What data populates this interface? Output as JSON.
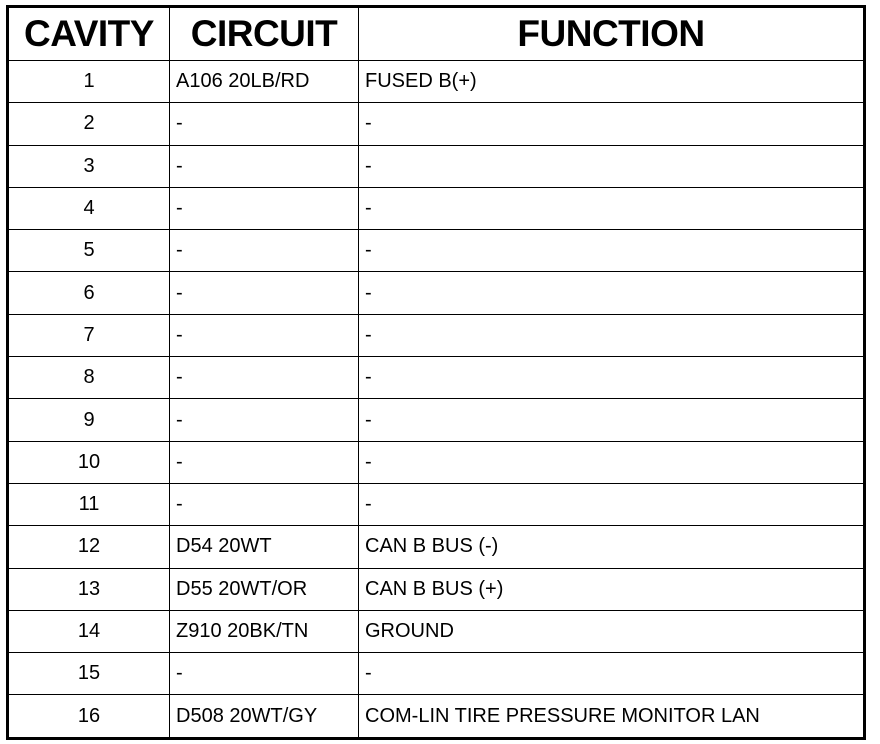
{
  "headers": {
    "cavity": "CAVITY",
    "circuit": "CIRCUIT",
    "function": "FUNCTION"
  },
  "rows": [
    {
      "cavity": "1",
      "circuit": "A106 20LB/RD",
      "function": "FUSED B(+)"
    },
    {
      "cavity": "2",
      "circuit": "-",
      "function": "-"
    },
    {
      "cavity": "3",
      "circuit": "-",
      "function": "-"
    },
    {
      "cavity": "4",
      "circuit": "-",
      "function": "-"
    },
    {
      "cavity": "5",
      "circuit": "-",
      "function": "-"
    },
    {
      "cavity": "6",
      "circuit": "-",
      "function": "-"
    },
    {
      "cavity": "7",
      "circuit": "-",
      "function": "-"
    },
    {
      "cavity": "8",
      "circuit": "-",
      "function": "-"
    },
    {
      "cavity": "9",
      "circuit": "-",
      "function": "-"
    },
    {
      "cavity": "10",
      "circuit": "-",
      "function": "-"
    },
    {
      "cavity": "11",
      "circuit": "-",
      "function": "-"
    },
    {
      "cavity": "12",
      "circuit": "D54 20WT",
      "function": "CAN B BUS (-)"
    },
    {
      "cavity": "13",
      "circuit": "D55 20WT/OR",
      "function": "CAN B BUS (+)"
    },
    {
      "cavity": "14",
      "circuit": "Z910 20BK/TN",
      "function": "GROUND"
    },
    {
      "cavity": "15",
      "circuit": "-",
      "function": "-"
    },
    {
      "cavity": "16",
      "circuit": "D508 20WT/GY",
      "function": "COM-LIN TIRE PRESSURE MONITOR LAN"
    }
  ]
}
